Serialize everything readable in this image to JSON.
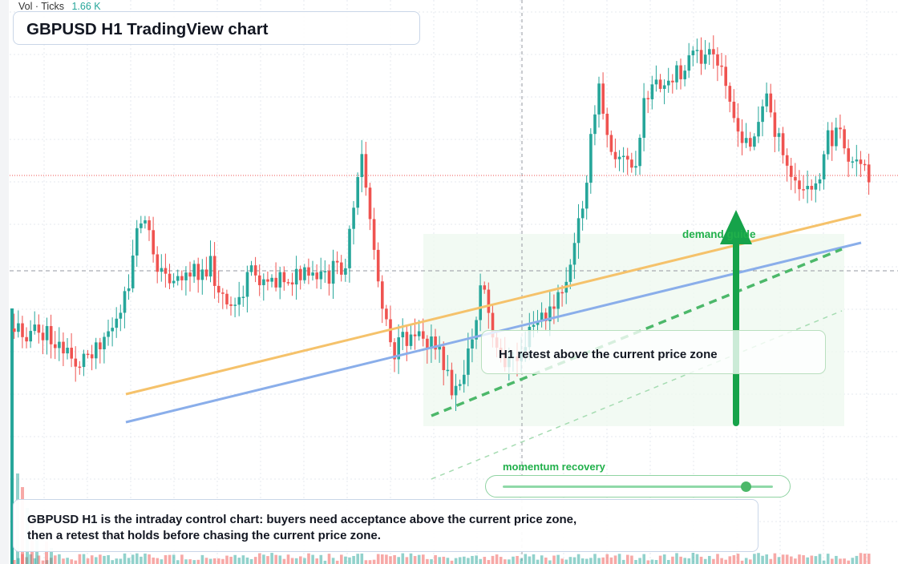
{
  "volume_readout": {
    "label": "Vol · Ticks",
    "value": "1.66 K"
  },
  "title": "GBPUSD H1 TradingView chart",
  "annotations": {
    "retest": "H1 retest above the current price zone",
    "demand": "demand guide",
    "momentum": "momentum recovery",
    "note": "GBPUSD H1 is the intraday control chart: buyers need acceptance above the current price zone, then a retest that holds before chasing the current price zone."
  },
  "momentum_slider": {
    "value": 0.9
  },
  "colors": {
    "up_candle": "#26a69a",
    "down_candle": "#ef5350",
    "orange_trendline": "#f5c26b",
    "blue_trendline": "#8aaeea",
    "green_dashed": "#4cb86a",
    "demand_arrow": "#16a34a",
    "current_price_line": "#ef5350"
  }
}
